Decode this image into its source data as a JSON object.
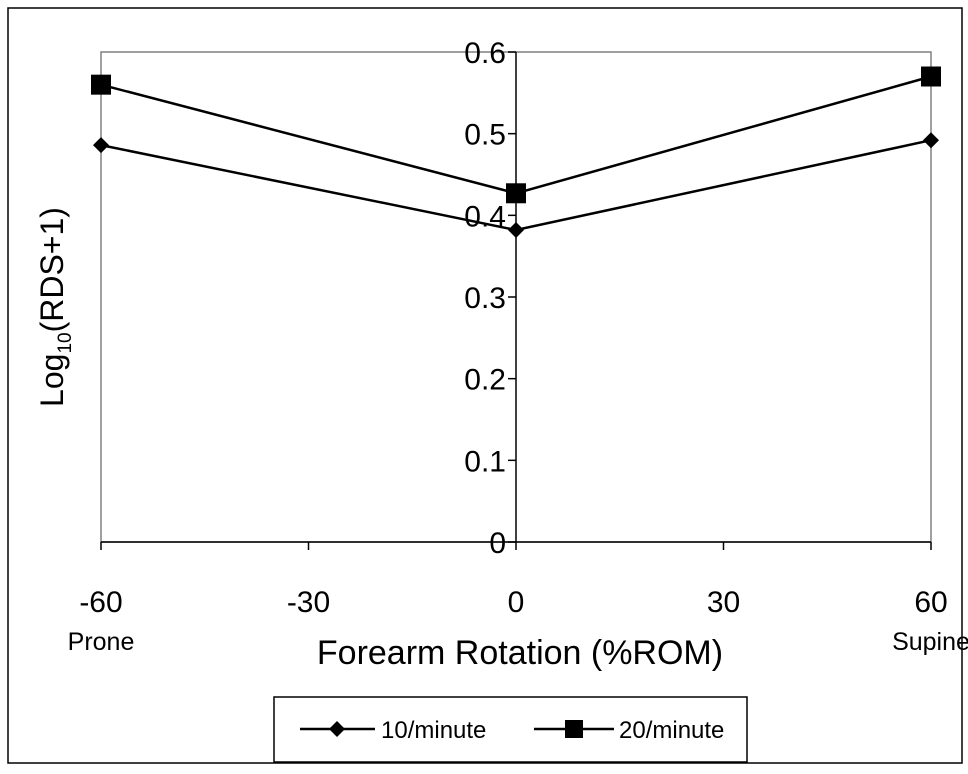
{
  "chart_data": {
    "type": "line",
    "xlabel": "Forearm Rotation (%ROM)",
    "ylabel_main": "Log",
    "ylabel_sub": "10",
    "ylabel_rest": "(RDS+1)",
    "xlim": [
      -60,
      60
    ],
    "ylim": [
      0,
      0.6
    ],
    "x_ticks": [
      -60,
      -30,
      0,
      30,
      60
    ],
    "x_tick_labels": [
      "-60",
      "-30",
      "0",
      "30",
      "60"
    ],
    "y_ticks": [
      0,
      0.1,
      0.2,
      0.3,
      0.4,
      0.5,
      0.6
    ],
    "y_tick_labels": [
      "0",
      "0.1",
      "0.2",
      "0.3",
      "0.4",
      "0.5",
      "0.6"
    ],
    "annotations": [
      {
        "text": "Prone",
        "x": -60
      },
      {
        "text": "Supine",
        "x": 60
      }
    ],
    "grid": false,
    "legend_position": "bottom-center",
    "x": [
      -60,
      0,
      60
    ],
    "series": [
      {
        "name": "10/minute",
        "marker": "diamond",
        "color": "#000000",
        "values": [
          0.486,
          0.382,
          0.492
        ]
      },
      {
        "name": "20/minute",
        "marker": "square",
        "color": "#000000",
        "values": [
          0.56,
          0.427,
          0.57
        ]
      }
    ]
  },
  "colors": {
    "plot_border": "#808080",
    "frame_border": "#000000",
    "line": "#000000"
  }
}
